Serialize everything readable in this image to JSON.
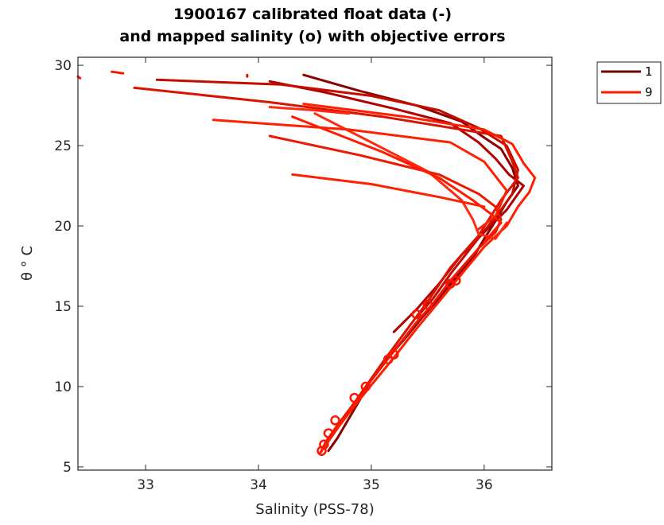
{
  "chart_data": {
    "type": "line",
    "title": [
      "1900167 calibrated float data (-)",
      "and mapped salinity (o) with objective errors"
    ],
    "xlabel": "Salinity (PSS-78)",
    "ylabel": "θ ° C",
    "xlim": [
      32.4,
      36.6
    ],
    "ylim": [
      4.8,
      30.5
    ],
    "xticks": [
      33,
      34,
      35,
      36
    ],
    "yticks": [
      5,
      10,
      15,
      20,
      25,
      30
    ],
    "grid": false,
    "legend_position": "outside-top-right",
    "legend": [
      {
        "label": "1",
        "color": "#6e0000"
      },
      {
        "label": "9",
        "color": "#ff1a00"
      }
    ],
    "series": [
      {
        "color": "#8b0000",
        "points": [
          [
            34.4,
            29.4
          ],
          [
            34.9,
            28.4
          ],
          [
            35.4,
            27.5
          ],
          [
            35.8,
            26.5
          ],
          [
            36.0,
            25.5
          ],
          [
            36.15,
            24.8
          ],
          [
            36.25,
            23.6
          ],
          [
            36.3,
            22.5
          ],
          [
            36.2,
            21.5
          ],
          [
            36.1,
            20.3
          ],
          [
            36.0,
            19.2
          ],
          [
            35.9,
            18.0
          ],
          [
            35.75,
            16.8
          ],
          [
            35.6,
            15.5
          ],
          [
            35.45,
            14.3
          ],
          [
            35.3,
            13.0
          ],
          [
            35.15,
            11.8
          ],
          [
            35.0,
            10.5
          ],
          [
            34.9,
            9.2
          ],
          [
            34.8,
            8.0
          ],
          [
            34.7,
            6.8
          ],
          [
            34.62,
            6.0
          ]
        ]
      },
      {
        "color": "#b00000",
        "points": [
          [
            34.1,
            29.0
          ],
          [
            34.6,
            28.3
          ],
          [
            35.2,
            27.3
          ],
          [
            35.7,
            26.4
          ],
          [
            35.95,
            25.2
          ],
          [
            36.1,
            24.2
          ],
          [
            36.22,
            23.2
          ],
          [
            36.35,
            22.5
          ],
          [
            36.2,
            21.0
          ],
          [
            35.8,
            18.2
          ],
          [
            35.6,
            16.4
          ],
          [
            35.4,
            14.8
          ],
          [
            35.2,
            13.4
          ]
        ]
      },
      {
        "color": "#c40c00",
        "points": [
          [
            33.1,
            29.1
          ],
          [
            34.2,
            28.8
          ],
          [
            35.0,
            28.1
          ],
          [
            35.6,
            27.2
          ],
          [
            35.95,
            26.1
          ],
          [
            36.2,
            25.0
          ],
          [
            36.3,
            23.5
          ],
          [
            36.25,
            22.0
          ],
          [
            36.15,
            21.0
          ],
          [
            35.9,
            18.8
          ],
          [
            35.7,
            17.0
          ],
          [
            35.55,
            15.5
          ],
          [
            35.4,
            14.3
          ]
        ]
      },
      {
        "color": "#d81400",
        "points": [
          [
            32.9,
            28.6
          ],
          [
            34.1,
            27.7
          ],
          [
            35.1,
            26.8
          ],
          [
            35.8,
            26.0
          ],
          [
            36.15,
            25.6
          ],
          [
            36.25,
            24.0
          ],
          [
            36.3,
            23.0
          ],
          [
            36.15,
            21.6
          ],
          [
            35.95,
            19.4
          ],
          [
            35.7,
            17.4
          ],
          [
            35.5,
            15.3
          ],
          [
            35.3,
            13.4
          ],
          [
            35.1,
            11.5
          ],
          [
            34.95,
            10.0
          ],
          [
            34.8,
            8.5
          ],
          [
            34.66,
            7.2
          ],
          [
            34.56,
            6.0
          ]
        ]
      },
      {
        "color": "#ec1800",
        "points": [
          [
            34.1,
            25.6
          ],
          [
            34.9,
            24.4
          ],
          [
            35.6,
            23.2
          ],
          [
            35.95,
            22.0
          ],
          [
            36.1,
            21.2
          ],
          [
            36.15,
            20.4
          ],
          [
            36.1,
            19.6
          ],
          [
            35.95,
            18.6
          ],
          [
            35.7,
            16.6
          ],
          [
            35.55,
            15.2
          ],
          [
            35.4,
            14.0
          ],
          [
            35.2,
            12.2
          ],
          [
            35.0,
            10.4
          ],
          [
            34.85,
            9.0
          ],
          [
            34.7,
            7.6
          ],
          [
            34.6,
            6.6
          ],
          [
            34.55,
            5.9
          ]
        ]
      },
      {
        "color": "#ff1e00",
        "points": [
          [
            34.4,
            27.6
          ],
          [
            35.3,
            26.8
          ],
          [
            36.0,
            26.0
          ],
          [
            36.25,
            25.1
          ],
          [
            36.35,
            23.9
          ],
          [
            36.45,
            23.0
          ],
          [
            36.4,
            22.1
          ],
          [
            36.3,
            21.2
          ],
          [
            36.2,
            20.0
          ],
          [
            36.0,
            18.7
          ],
          [
            35.8,
            17.0
          ],
          [
            35.6,
            15.3
          ],
          [
            35.4,
            13.6
          ],
          [
            35.2,
            11.8
          ],
          [
            35.0,
            10.1
          ],
          [
            34.85,
            8.8
          ],
          [
            34.7,
            7.4
          ],
          [
            34.6,
            6.4
          ],
          [
            34.55,
            5.9
          ]
        ]
      },
      {
        "color": "#ff2a10",
        "points": [
          [
            34.5,
            27.0
          ],
          [
            35.0,
            25.2
          ],
          [
            35.5,
            23.4
          ],
          [
            35.8,
            21.6
          ],
          [
            35.9,
            20.4
          ],
          [
            35.95,
            19.5
          ],
          [
            36.1,
            19.2
          ],
          [
            36.2,
            20.2
          ]
        ]
      },
      {
        "color": "#ff1a00",
        "points": [
          [
            34.3,
            26.8
          ],
          [
            35.1,
            24.6
          ],
          [
            35.6,
            23.0
          ],
          [
            35.9,
            21.6
          ],
          [
            36.05,
            20.8
          ],
          [
            36.15,
            20.2
          ],
          [
            36.0,
            19.0
          ]
        ]
      },
      {
        "color": "#ff2000",
        "points": [
          [
            33.6,
            26.6
          ],
          [
            34.8,
            26.0
          ],
          [
            35.7,
            25.2
          ],
          [
            36.0,
            24.0
          ],
          [
            36.2,
            22.2
          ],
          [
            36.1,
            20.6
          ],
          [
            35.95,
            19.8
          ]
        ]
      },
      {
        "color": "#ff1200",
        "points": [
          [
            32.7,
            29.6
          ],
          [
            32.8,
            29.5
          ]
        ]
      },
      {
        "color": "#ff1200",
        "points": [
          [
            32.4,
            29.3
          ],
          [
            32.42,
            29.2
          ]
        ]
      },
      {
        "color": "#e01000",
        "points": [
          [
            33.9,
            29.4
          ],
          [
            33.9,
            29.3
          ]
        ]
      },
      {
        "color": "#ff2a10",
        "points": [
          [
            34.1,
            27.4
          ],
          [
            34.5,
            27.2
          ],
          [
            34.8,
            27.0
          ]
        ]
      },
      {
        "color": "#ff2000",
        "points": [
          [
            34.3,
            23.2
          ],
          [
            35.0,
            22.6
          ],
          [
            35.6,
            21.8
          ],
          [
            36.0,
            21.2
          ]
        ]
      }
    ],
    "mapped_points": {
      "color": "#ff1500",
      "points": [
        [
          34.56,
          6.0
        ],
        [
          34.58,
          6.4
        ],
        [
          34.62,
          7.1
        ],
        [
          34.68,
          7.9
        ],
        [
          34.85,
          9.3
        ],
        [
          34.95,
          10.0
        ],
        [
          35.15,
          11.7
        ],
        [
          35.2,
          12.0
        ],
        [
          35.4,
          14.5
        ],
        [
          35.5,
          15.1
        ],
        [
          35.7,
          16.4
        ],
        [
          35.75,
          16.6
        ]
      ]
    }
  }
}
